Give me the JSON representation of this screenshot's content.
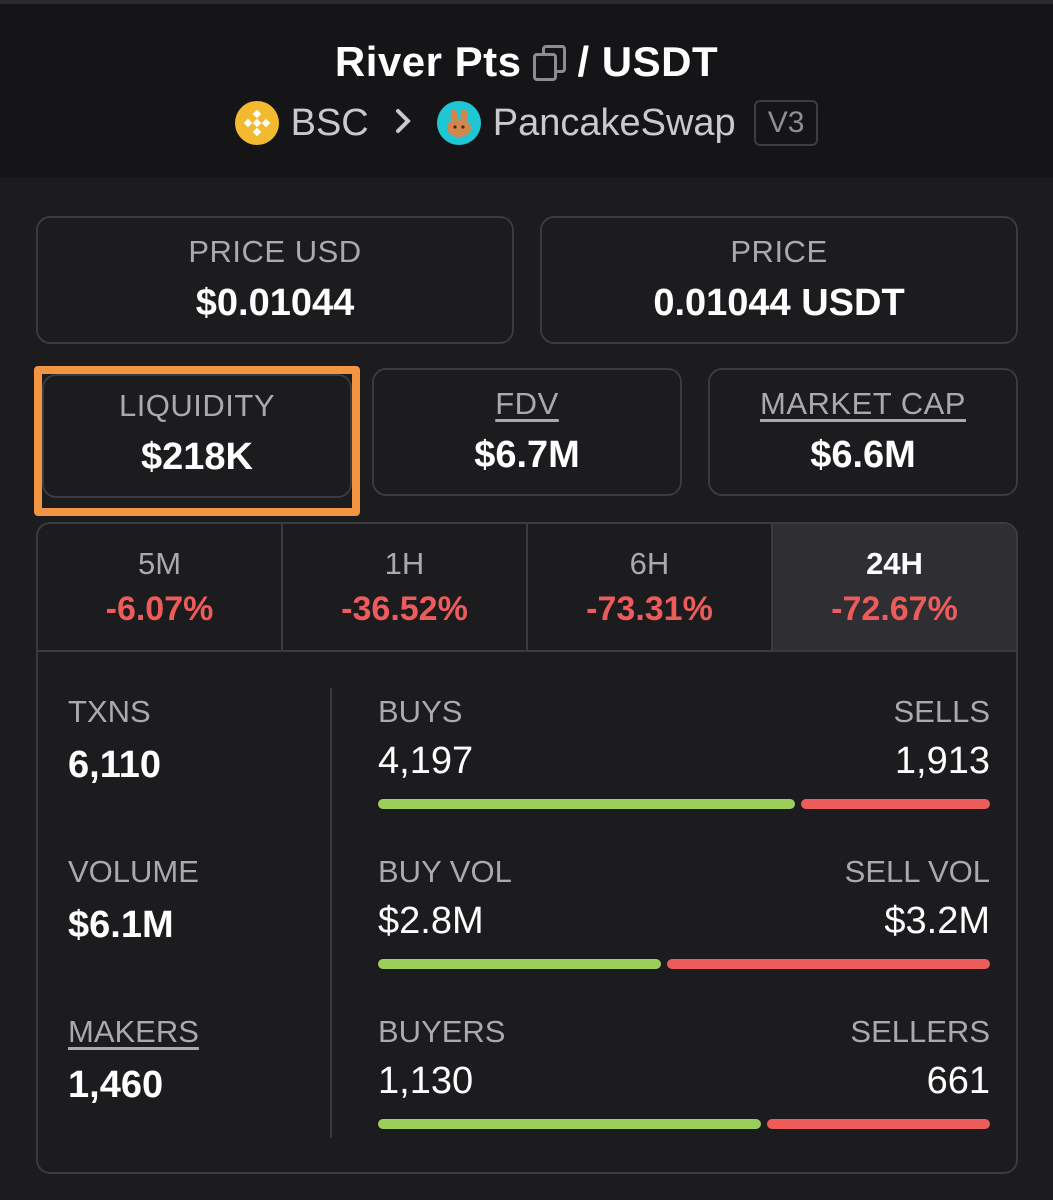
{
  "header": {
    "base_token": "River Pts",
    "quote_separator": "/ USDT",
    "chain": "BSC",
    "dex": "PancakeSwap",
    "version": "V3"
  },
  "price_cards": [
    {
      "label": "PRICE USD",
      "value": "$0.01044"
    },
    {
      "label": "PRICE",
      "value": "0.01044 USDT"
    }
  ],
  "metrics": {
    "liquidity": {
      "label": "LIQUIDITY",
      "value": "$218K"
    },
    "fdv": {
      "label": "FDV",
      "value": "$6.7M"
    },
    "market_cap": {
      "label": "MARKET CAP",
      "value": "$6.6M"
    }
  },
  "timeframes": [
    {
      "label": "5M",
      "change": "-6.07%"
    },
    {
      "label": "1H",
      "change": "-36.52%"
    },
    {
      "label": "6H",
      "change": "-73.31%"
    },
    {
      "label": "24H",
      "change": "-72.67%",
      "active": true
    }
  ],
  "stats": {
    "txns": {
      "label": "TXNS",
      "value": "6,110"
    },
    "volume": {
      "label": "VOLUME",
      "value": "$6.1M"
    },
    "makers": {
      "label": "MAKERS",
      "value": "1,460"
    },
    "buys_sells": {
      "left_label": "BUYS",
      "left_value": "4,197",
      "right_label": "SELLS",
      "right_value": "1,913",
      "buy_fraction": 0.687
    },
    "vol": {
      "left_label": "BUY VOL",
      "left_value": "$2.8M",
      "right_label": "SELL VOL",
      "right_value": "$3.2M",
      "buy_fraction": 0.467
    },
    "buyers_sellers": {
      "left_label": "BUYERS",
      "left_value": "1,130",
      "right_label": "SELLERS",
      "right_value": "661",
      "buy_fraction": 0.631
    }
  },
  "colors": {
    "buy": "#9ccf5a",
    "sell": "#ee5b5b",
    "highlight": "#f39442",
    "chain_icon": "#f3ba2f",
    "dex_icon": "#1fc7d4"
  },
  "icons": {
    "copy": "copy-icon",
    "chain": "bnb-icon",
    "dex": "pancakeswap-icon",
    "chevron": "chevron-right-icon"
  }
}
